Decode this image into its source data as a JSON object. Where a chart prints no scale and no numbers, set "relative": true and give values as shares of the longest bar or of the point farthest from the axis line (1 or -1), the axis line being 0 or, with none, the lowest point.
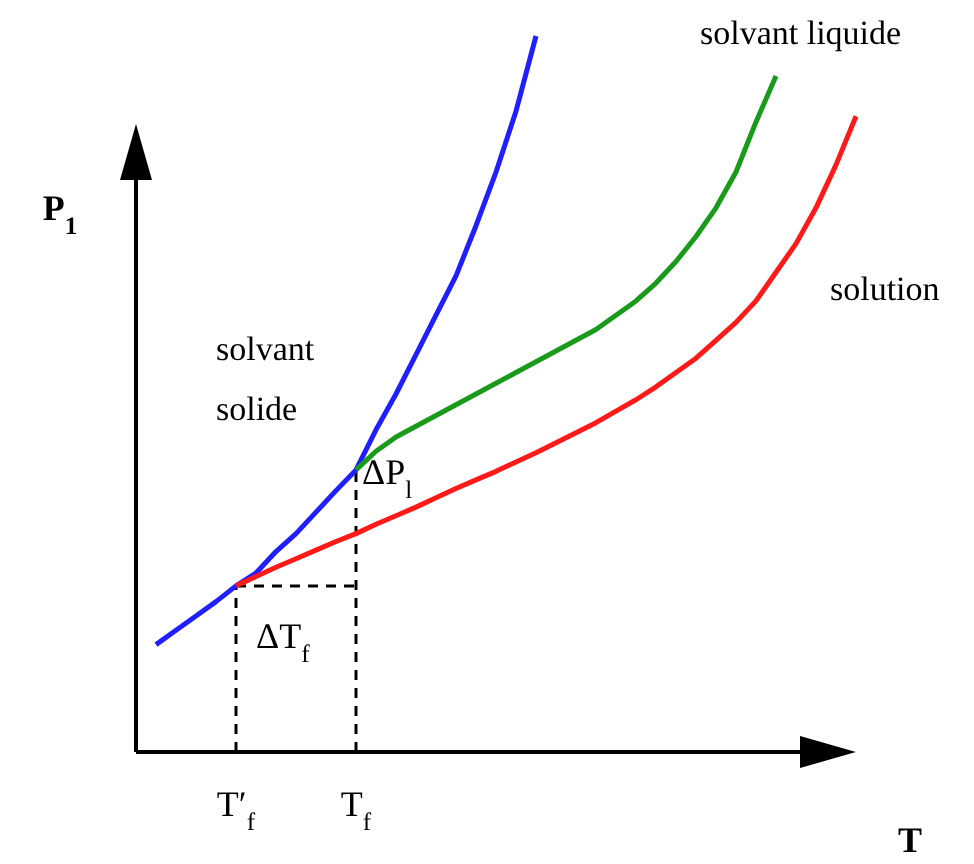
{
  "chart_data": {
    "type": "line",
    "relative": true,
    "xlabel": "T",
    "ylabel": "P$_{1}$",
    "legend": false,
    "marker": "none",
    "categories": [
      null,
      null,
      null,
      null,
      null,
      "T′$_{f}$",
      null,
      null,
      null,
      null,
      null,
      "T$_{f}$",
      null,
      null,
      null,
      null,
      null,
      null,
      null,
      null,
      null,
      null,
      null,
      null,
      null,
      null,
      null,
      null,
      null,
      null,
      null,
      null,
      null,
      null,
      null,
      null,
      null
    ],
    "annotations": [
      "ΔP$_{l}$",
      "ΔT$_{f}$"
    ],
    "series": [
      {
        "name": "solvant solide",
        "color": "#1f1fff",
        "values": [
          null,
          0.15,
          0.17,
          0.19,
          0.21,
          0.232,
          0.25,
          0.28,
          0.305,
          0.335,
          0.365,
          0.394,
          0.45,
          0.5,
          0.555,
          0.61,
          0.665,
          0.735,
          0.81,
          0.895,
          1,
          null,
          null,
          null,
          null,
          null,
          null,
          null,
          null,
          null,
          null,
          null,
          null,
          null,
          null,
          null,
          null
        ]
      },
      {
        "name": "solvant liquide",
        "color": "#1a9a1a",
        "values": [
          null,
          null,
          null,
          null,
          null,
          null,
          null,
          null,
          null,
          null,
          null,
          0.394,
          0.42,
          0.44,
          0.455,
          0.47,
          0.485,
          0.5,
          0.515,
          0.53,
          0.545,
          0.56,
          0.575,
          0.59,
          0.61,
          0.63,
          0.655,
          0.685,
          0.72,
          0.76,
          0.81,
          0.88,
          0.944,
          null,
          null,
          null,
          null
        ]
      },
      {
        "name": "solution",
        "color": "#ff1a1a",
        "values": [
          null,
          null,
          null,
          null,
          null,
          0.232,
          0.245,
          0.258,
          0.27,
          0.282,
          0.294,
          0.305,
          0.318,
          0.33,
          0.342,
          0.355,
          0.368,
          0.38,
          0.392,
          0.405,
          0.418,
          0.432,
          0.446,
          0.46,
          0.476,
          0.492,
          0.51,
          0.53,
          0.55,
          0.575,
          0.6,
          0.63,
          0.67,
          0.71,
          0.76,
          0.82,
          0.888
        ]
      }
    ]
  }
}
